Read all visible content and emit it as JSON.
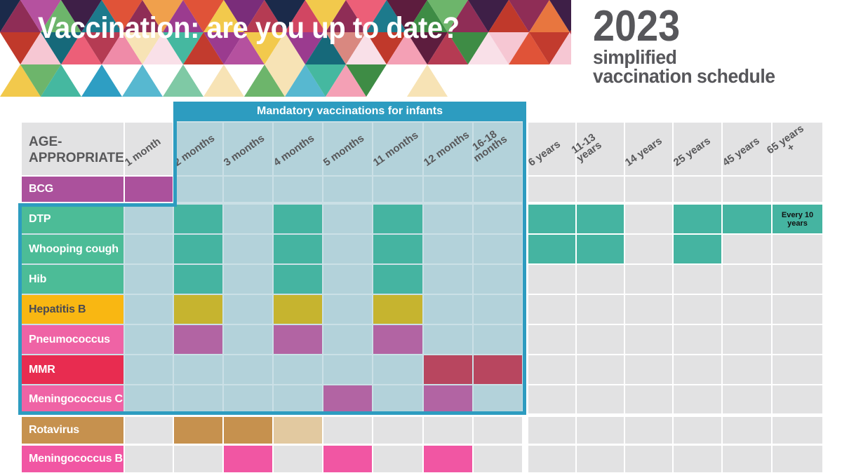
{
  "header": {
    "title": "Vaccination: are you up to date?",
    "year": "2023",
    "subtitle_line1": "simplified",
    "subtitle_line2": "vaccination schedule",
    "title_color": "#ffffff",
    "year_color": "#57575b",
    "mosaic_palette": [
      "#c23b2e",
      "#e05338",
      "#e8763f",
      "#f0a04c",
      "#b53b53",
      "#8f2d56",
      "#d14662",
      "#ec5f78",
      "#5d1d3e",
      "#3e1f47",
      "#7a2d7a",
      "#9b3b8f",
      "#b5519f",
      "#1b2a4a",
      "#16697a",
      "#c0392b",
      "#2e9ec3",
      "#57b8d0",
      "#1d7a8c",
      "#2e8c7a",
      "#45b8a0",
      "#6db56b",
      "#3e8c45",
      "#f2c94c",
      "#ef8ba8",
      "#f4a0b5",
      "#f6c7d3",
      "#f9e0e8",
      "#7fc9a5",
      "#a5d6e0",
      "#f7e3b5",
      "#d98880"
    ]
  },
  "chart_data": {
    "type": "table",
    "title": "Vaccination: are you up to date?",
    "subtitle": "2023 simplified vaccination schedule",
    "corner_label_lines": [
      "AGE-",
      "APPROPRIATE"
    ],
    "mandatory_label": "Mandatory vaccinations for infants",
    "mandatory_color": "#2d9cc0",
    "mandatory_columns": [
      "2 months",
      "3 months",
      "4 months",
      "5 months",
      "11 months",
      "12 months",
      "16-18 months"
    ],
    "empty_in_region_color": "#b3d2da",
    "region_gap_color": "#cbe0e6",
    "empty_color": "#e2e2e3",
    "header_text_color": "#58585a",
    "columns": [
      {
        "label": "1 month",
        "lines": [
          "1 month"
        ]
      },
      {
        "label": "2 months",
        "lines": [
          "2 months"
        ]
      },
      {
        "label": "3 months",
        "lines": [
          "3 months"
        ]
      },
      {
        "label": "4 months",
        "lines": [
          "4 months"
        ]
      },
      {
        "label": "5 months",
        "lines": [
          "5 months"
        ]
      },
      {
        "label": "11 months",
        "lines": [
          "11 months"
        ]
      },
      {
        "label": "12 months",
        "lines": [
          "12 months"
        ]
      },
      {
        "label": "16-18 months",
        "lines": [
          "16-18",
          "months"
        ]
      },
      {
        "label": "6 years",
        "lines": [
          "6 years"
        ]
      },
      {
        "label": "11-13 years",
        "lines": [
          "11-13",
          "years"
        ]
      },
      {
        "label": "14 years",
        "lines": [
          "14 years"
        ]
      },
      {
        "label": "25 years",
        "lines": [
          "25 years"
        ]
      },
      {
        "label": "45 years",
        "lines": [
          "45 years"
        ]
      },
      {
        "label": "65 years +",
        "lines": [
          "65 years",
          "+"
        ]
      }
    ],
    "rows": [
      {
        "vaccine": "BCG",
        "region": "partial",
        "label_bg": "#ab519c",
        "label_fg": "#ffffff",
        "dose_color": "#ab519c",
        "doses": [
          "1 month"
        ]
      },
      {
        "vaccine": "DTP",
        "region": "full",
        "label_bg": "#4cbc97",
        "label_fg": "#ffffff",
        "dose_color": "#45b4a1",
        "doses": [
          "2 months",
          "4 months",
          "11 months",
          "6 years",
          "11-13 years",
          "25 years",
          "45 years",
          "65 years +"
        ]
      },
      {
        "vaccine": "Whooping cough",
        "region": "full",
        "label_bg": "#4cbc97",
        "label_fg": "#ffffff",
        "dose_color": "#45b4a1",
        "doses": [
          "2 months",
          "4 months",
          "11 months",
          "6 years",
          "11-13 years",
          "25 years"
        ]
      },
      {
        "vaccine": "Hib",
        "region": "full",
        "label_bg": "#4cbc97",
        "label_fg": "#ffffff",
        "dose_color": "#45b4a1",
        "doses": [
          "2 months",
          "4 months",
          "11 months"
        ]
      },
      {
        "vaccine": "Hepatitis B",
        "region": "full",
        "label_bg": "#f9b712",
        "label_fg": "#4a4a52",
        "dose_color": "#c6b42f",
        "doses": [
          "2 months",
          "4 months",
          "11 months"
        ]
      },
      {
        "vaccine": "Pneumococcus",
        "region": "full",
        "label_bg": "#ef63a5",
        "label_fg": "#ffffff",
        "dose_color": "#b264a3",
        "doses": [
          "2 months",
          "4 months",
          "11 months"
        ]
      },
      {
        "vaccine": "MMR",
        "region": "full",
        "label_bg": "#e82c50",
        "label_fg": "#ffffff",
        "dose_color": "#b8465f",
        "doses": [
          "12 months",
          "16-18 months"
        ]
      },
      {
        "vaccine": "Meningococcus C",
        "region": "full",
        "label_bg": "#ef63a5",
        "label_fg": "#ffffff",
        "dose_color": "#b264a3",
        "doses": [
          "5 months",
          "12 months"
        ]
      },
      {
        "vaccine": "Rotavirus",
        "region": "none",
        "label_bg": "#c6914e",
        "label_fg": "#ffffff",
        "dose_color": "#c6914e",
        "light_color": "#e2c9a0",
        "doses": [
          "2 months",
          "3 months"
        ],
        "doses_light": [
          "4 months"
        ]
      },
      {
        "vaccine": "Meningococcus B",
        "region": "none",
        "label_bg": "#f156a3",
        "label_fg": "#ffffff",
        "dose_color": "#f156a3",
        "doses": [
          "3 months",
          "5 months",
          "12 months"
        ]
      }
    ],
    "annotations": [
      {
        "row": "DTP",
        "column": "65 years +",
        "text": "Every 10 years"
      }
    ]
  }
}
